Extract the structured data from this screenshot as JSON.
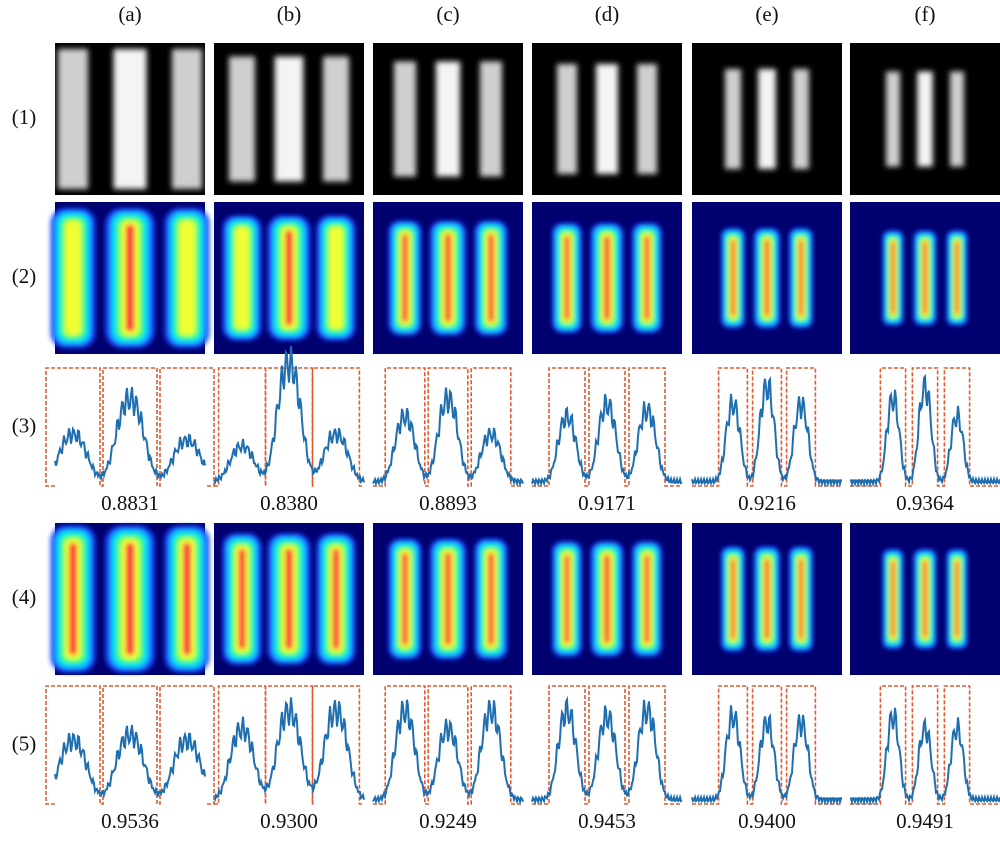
{
  "columns": [
    "(a)",
    "(b)",
    "(c)",
    "(d)",
    "(e)",
    "(f)"
  ],
  "rows": [
    "(1)",
    "(2)",
    "(3)",
    "(4)",
    "(5)"
  ],
  "row3_values": [
    "0.8831",
    "0.8380",
    "0.8893",
    "0.9171",
    "0.9216",
    "0.9364"
  ],
  "row5_values": [
    "0.9536",
    "0.9300",
    "0.9249",
    "0.9453",
    "0.9400",
    "0.9491"
  ]
}
